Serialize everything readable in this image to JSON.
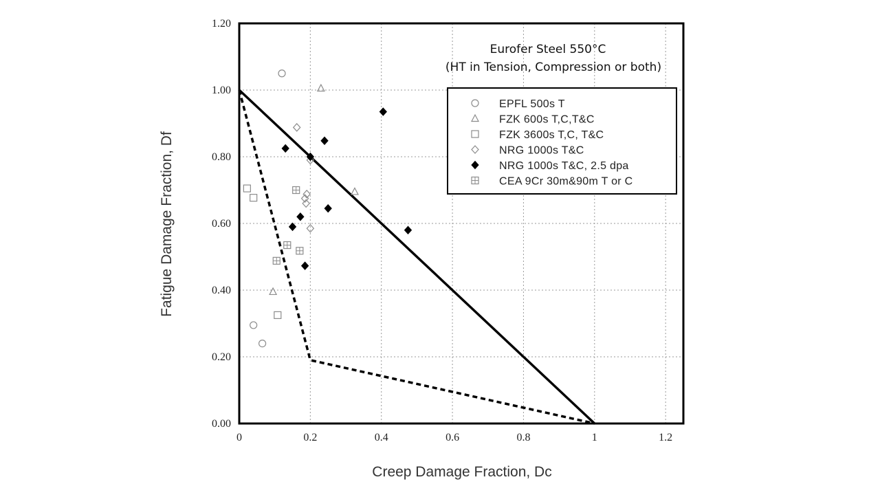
{
  "chart_data": {
    "type": "scatter",
    "title": "Eurofer Steel 550°C",
    "subtitle": "(HT in Tension, Compression or both)",
    "xlabel": "Creep Damage Fraction, Dc",
    "ylabel": "Fatigue Damage Fraction, Df",
    "xlim": [
      0,
      1.25
    ],
    "ylim": [
      0,
      1.2
    ],
    "xticks": [
      "0",
      "0.2",
      "0.4",
      "0.6",
      "0.8",
      "1",
      "1.2"
    ],
    "xtick_values": [
      0,
      0.2,
      0.4,
      0.6,
      0.8,
      1.0,
      1.2
    ],
    "yticks": [
      "0.00",
      "0.20",
      "0.40",
      "0.60",
      "0.80",
      "1.00",
      "1.20"
    ],
    "ytick_values": [
      0,
      0.2,
      0.4,
      0.6,
      0.8,
      1.0,
      1.2
    ],
    "grid": true,
    "legend_position": "top-right",
    "series": [
      {
        "name": "EPFL 500s T",
        "marker": "circle-open",
        "points": [
          [
            0.12,
            1.05
          ],
          [
            0.04,
            0.295
          ],
          [
            0.065,
            0.24
          ]
        ]
      },
      {
        "name": "FZK 600s T,C,T&C",
        "marker": "triangle-open",
        "points": [
          [
            0.23,
            1.005
          ],
          [
            0.325,
            0.695
          ],
          [
            0.095,
            0.395
          ]
        ]
      },
      {
        "name": "FZK 3600s T,C, T&C",
        "marker": "square-open",
        "points": [
          [
            0.022,
            0.705
          ],
          [
            0.04,
            0.677
          ],
          [
            0.108,
            0.325
          ]
        ]
      },
      {
        "name": "NRG 1000s T&C",
        "marker": "diamond-open",
        "points": [
          [
            0.162,
            0.888
          ],
          [
            0.2,
            0.79
          ],
          [
            0.19,
            0.688
          ],
          [
            0.185,
            0.675
          ],
          [
            0.188,
            0.66
          ],
          [
            0.2,
            0.585
          ]
        ]
      },
      {
        "name": "NRG 1000s T&C, 2.5 dpa",
        "marker": "diamond-filled",
        "points": [
          [
            0.405,
            0.935
          ],
          [
            0.13,
            0.825
          ],
          [
            0.24,
            0.848
          ],
          [
            0.2,
            0.8
          ],
          [
            0.25,
            0.645
          ],
          [
            0.172,
            0.62
          ],
          [
            0.15,
            0.59
          ],
          [
            0.475,
            0.58
          ],
          [
            0.185,
            0.473
          ]
        ]
      },
      {
        "name": "CEA 9Cr 30m&90m T or C",
        "marker": "square-crossed",
        "points": [
          [
            0.16,
            0.7
          ],
          [
            0.135,
            0.535
          ],
          [
            0.17,
            0.518
          ],
          [
            0.105,
            0.488
          ]
        ]
      }
    ],
    "lines": [
      {
        "style": "solid",
        "points": [
          [
            0,
            1.0
          ],
          [
            1.0,
            0
          ]
        ]
      },
      {
        "style": "dashed",
        "points": [
          [
            0,
            1.0
          ],
          [
            0.2,
            0.19
          ],
          [
            1.0,
            0
          ]
        ]
      }
    ],
    "colors": {
      "open_marker": "#8c8c8c",
      "filled_marker": "#000000",
      "line": "#000000",
      "grid": "#9a9a9a"
    }
  }
}
